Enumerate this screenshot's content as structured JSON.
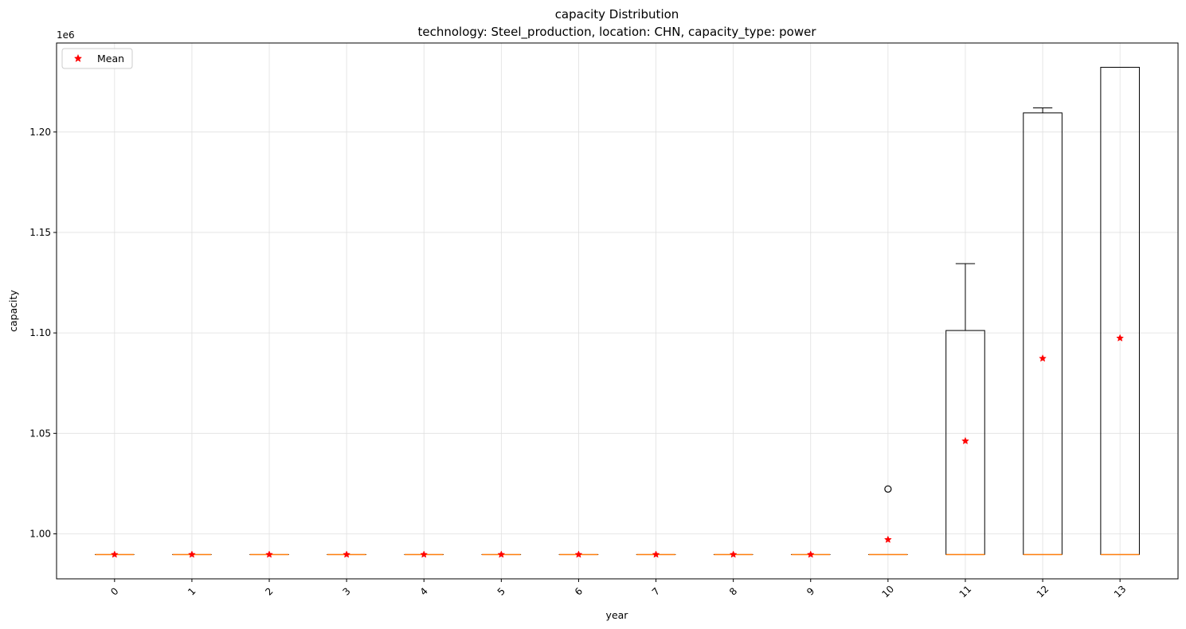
{
  "chart_data": {
    "type": "box",
    "title": "capacity Distribution",
    "subtitle": "technology: Steel_production, location: CHN, capacity_type: power",
    "xlabel": "year",
    "ylabel": "capacity",
    "y_offset_label": "1e6",
    "y_scale": 1000000,
    "ylim": [
      0.9776,
      1.2443
    ],
    "y_ticks": [
      1.0,
      1.05,
      1.1,
      1.15,
      1.2
    ],
    "y_tick_labels": [
      "1.00",
      "1.05",
      "1.10",
      "1.15",
      "1.20"
    ],
    "categories": [
      "0",
      "1",
      "2",
      "3",
      "4",
      "5",
      "6",
      "7",
      "8",
      "9",
      "10",
      "11",
      "12",
      "13"
    ],
    "boxes": [
      {
        "whislo": 0.9897,
        "q1": 0.9897,
        "med": 0.9897,
        "q3": 0.9897,
        "whishi": 0.9897,
        "mean": 0.9897,
        "fliers": []
      },
      {
        "whislo": 0.9897,
        "q1": 0.9897,
        "med": 0.9897,
        "q3": 0.9897,
        "whishi": 0.9897,
        "mean": 0.9897,
        "fliers": []
      },
      {
        "whislo": 0.9897,
        "q1": 0.9897,
        "med": 0.9897,
        "q3": 0.9897,
        "whishi": 0.9897,
        "mean": 0.9897,
        "fliers": []
      },
      {
        "whislo": 0.9897,
        "q1": 0.9897,
        "med": 0.9897,
        "q3": 0.9897,
        "whishi": 0.9897,
        "mean": 0.9897,
        "fliers": []
      },
      {
        "whislo": 0.9897,
        "q1": 0.9897,
        "med": 0.9897,
        "q3": 0.9897,
        "whishi": 0.9897,
        "mean": 0.9897,
        "fliers": []
      },
      {
        "whislo": 0.9897,
        "q1": 0.9897,
        "med": 0.9897,
        "q3": 0.9897,
        "whishi": 0.9897,
        "mean": 0.9897,
        "fliers": []
      },
      {
        "whislo": 0.9897,
        "q1": 0.9897,
        "med": 0.9897,
        "q3": 0.9897,
        "whishi": 0.9897,
        "mean": 0.9897,
        "fliers": []
      },
      {
        "whislo": 0.9897,
        "q1": 0.9897,
        "med": 0.9897,
        "q3": 0.9897,
        "whishi": 0.9897,
        "mean": 0.9897,
        "fliers": []
      },
      {
        "whislo": 0.9897,
        "q1": 0.9897,
        "med": 0.9897,
        "q3": 0.9897,
        "whishi": 0.9897,
        "mean": 0.9897,
        "fliers": []
      },
      {
        "whislo": 0.9897,
        "q1": 0.9897,
        "med": 0.9897,
        "q3": 0.9897,
        "whishi": 0.9897,
        "mean": 0.9897,
        "fliers": []
      },
      {
        "whislo": 0.9897,
        "q1": 0.9897,
        "med": 0.9897,
        "q3": 0.9897,
        "whishi": 0.9897,
        "mean": 0.9971,
        "fliers": [
          1.0223
        ]
      },
      {
        "whislo": 0.9897,
        "q1": 0.9897,
        "med": 0.9897,
        "q3": 1.1012,
        "whishi": 1.1345,
        "mean": 1.0462,
        "fliers": []
      },
      {
        "whislo": 0.9897,
        "q1": 0.9897,
        "med": 0.9897,
        "q3": 1.2095,
        "whishi": 1.212,
        "mean": 1.0873,
        "fliers": []
      },
      {
        "whislo": 0.9897,
        "q1": 0.9897,
        "med": 0.9897,
        "q3": 1.2322,
        "whishi": 1.2322,
        "mean": 1.0974,
        "fliers": []
      }
    ],
    "legend": {
      "label": "Mean",
      "position": "upper-left"
    },
    "grid": true,
    "colors": {
      "box": "#000000",
      "median": "#ff7f0e",
      "mean": "#ff0000",
      "grid": "#e0e0e0"
    }
  }
}
